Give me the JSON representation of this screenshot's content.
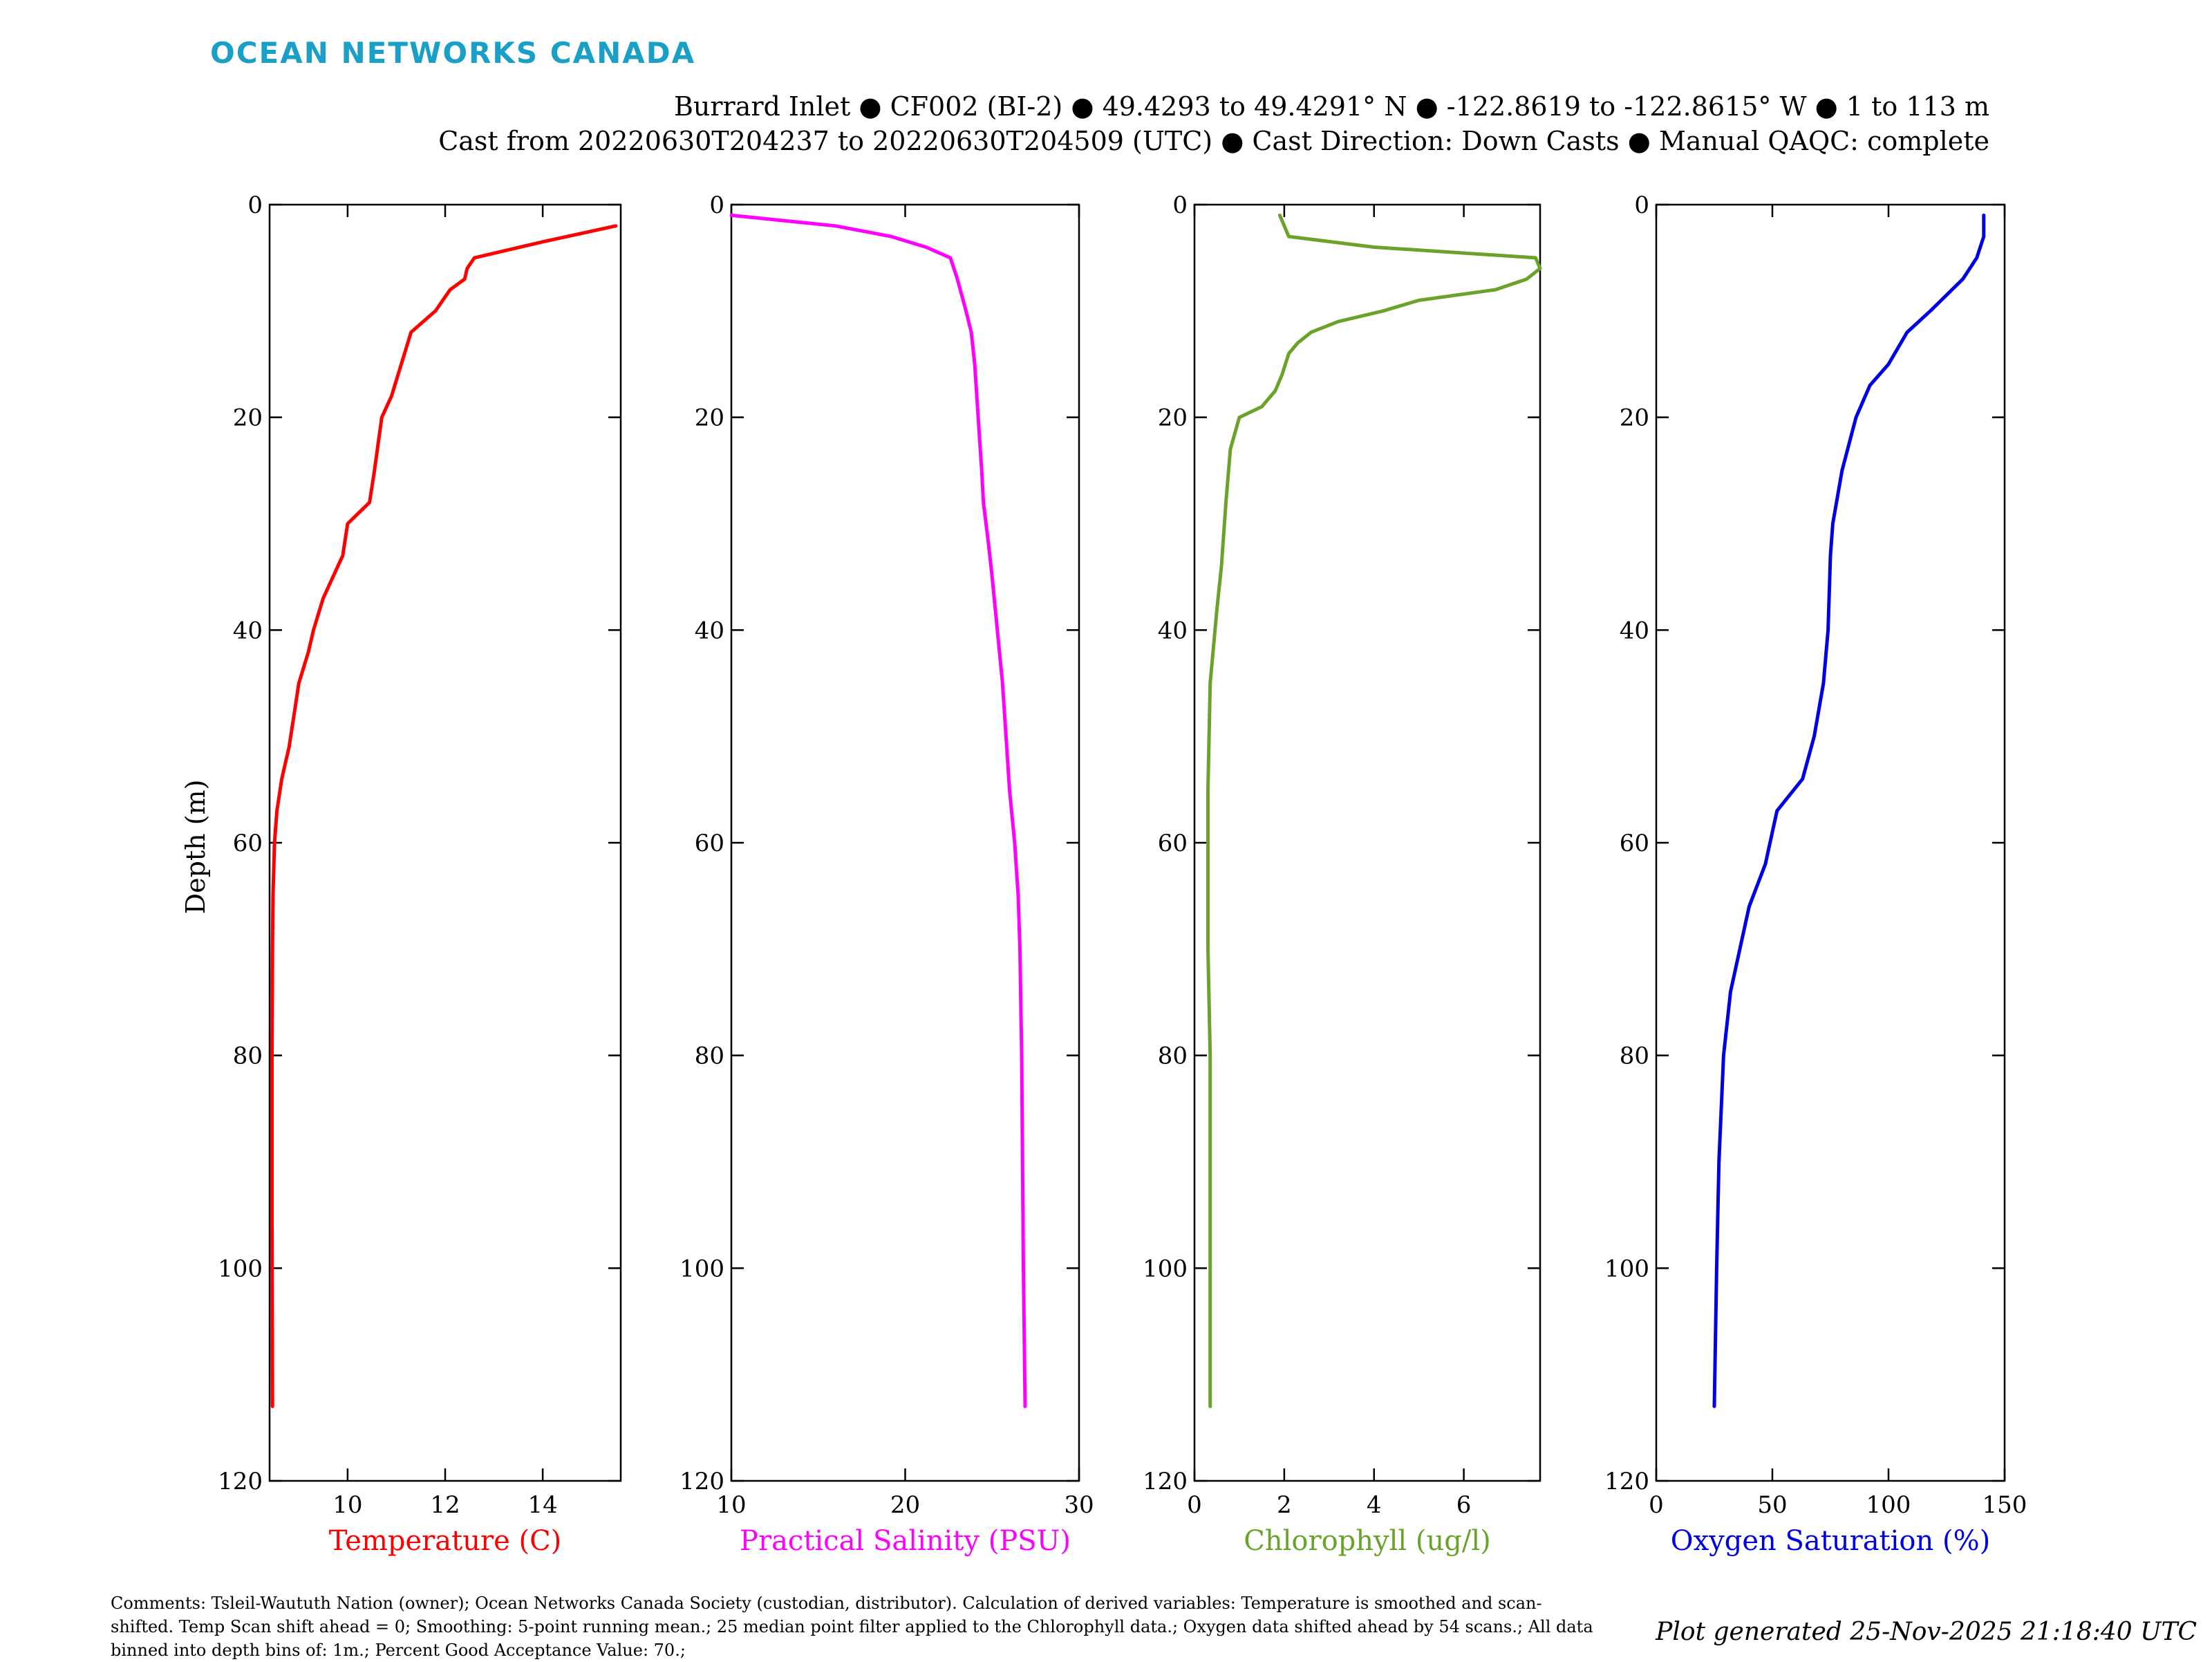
{
  "brand": "OCEAN NETWORKS CANADA",
  "header": {
    "title_line1": "Burrard Inlet ● CF002 (BI-2) ● 49.4293 to 49.4291° N ● -122.8619 to -122.8615° W ● 1 to 113 m",
    "title_line2": "Cast from 20220630T204237 to 20220630T204509 (UTC) ● Cast Direction: Down Casts ● Manual QAQC: complete"
  },
  "footer": {
    "comments": "Comments: Tsleil-Waututh Nation (owner); Ocean Networks Canada Society (custodian, distributor). Calculation of derived variables: Temperature is smoothed and scan-shifted. Temp Scan shift ahead = 0; Smoothing: 5-point running mean.; 25 median point filter applied to the Chlorophyll data.; Oxygen data shifted ahead by 54 scans.; All data binned into depth bins of: 1m.; Percent Good Acceptance Value: 70.;",
    "generated": "Plot generated 25-Nov-2025 21:18:40 UTC"
  },
  "chart_data": [
    {
      "type": "line",
      "xlabel": "Temperature (C)",
      "ylabel": "Depth (m)",
      "color": "#ff0000",
      "xlim": [
        8.4,
        15.6
      ],
      "ylim": [
        0,
        120
      ],
      "y_reversed": true,
      "xticks": [
        10,
        12,
        14
      ],
      "yticks": [
        0,
        20,
        40,
        60,
        80,
        100,
        120
      ],
      "points": [
        [
          15.5,
          2
        ],
        [
          14.0,
          3.5
        ],
        [
          12.6,
          5
        ],
        [
          12.45,
          6
        ],
        [
          12.4,
          7
        ],
        [
          12.1,
          8
        ],
        [
          11.8,
          10
        ],
        [
          11.3,
          12
        ],
        [
          11.1,
          15
        ],
        [
          10.9,
          18
        ],
        [
          10.7,
          20
        ],
        [
          10.55,
          25
        ],
        [
          10.45,
          28
        ],
        [
          10.0,
          30
        ],
        [
          9.9,
          33
        ],
        [
          9.7,
          35
        ],
        [
          9.5,
          37
        ],
        [
          9.3,
          40
        ],
        [
          9.2,
          42
        ],
        [
          9.0,
          45
        ],
        [
          8.9,
          48
        ],
        [
          8.8,
          51
        ],
        [
          8.65,
          54
        ],
        [
          8.55,
          57
        ],
        [
          8.5,
          60
        ],
        [
          8.47,
          65
        ],
        [
          8.46,
          70
        ],
        [
          8.45,
          80
        ],
        [
          8.45,
          95
        ],
        [
          8.46,
          113
        ]
      ]
    },
    {
      "type": "line",
      "xlabel": "Practical Salinity (PSU)",
      "color": "#ff00ff",
      "xlim": [
        10,
        30
      ],
      "ylim": [
        0,
        120
      ],
      "y_reversed": true,
      "xticks": [
        10,
        20,
        30
      ],
      "yticks": [
        0,
        20,
        40,
        60,
        80,
        100,
        120
      ],
      "points": [
        [
          10,
          1
        ],
        [
          13,
          1.5
        ],
        [
          16,
          2
        ],
        [
          19.2,
          3
        ],
        [
          21.2,
          4
        ],
        [
          22.6,
          5
        ],
        [
          23,
          7
        ],
        [
          23.5,
          10
        ],
        [
          23.8,
          12
        ],
        [
          24,
          15
        ],
        [
          24.2,
          20
        ],
        [
          24.4,
          25
        ],
        [
          24.5,
          28
        ],
        [
          24.8,
          32
        ],
        [
          25,
          35
        ],
        [
          25.3,
          40
        ],
        [
          25.6,
          45
        ],
        [
          25.8,
          50
        ],
        [
          26,
          55
        ],
        [
          26.3,
          60
        ],
        [
          26.5,
          65
        ],
        [
          26.6,
          70
        ],
        [
          26.7,
          80
        ],
        [
          26.8,
          100
        ],
        [
          26.9,
          113
        ]
      ]
    },
    {
      "type": "line",
      "xlabel": "Chlorophyll (ug/l)",
      "color": "#6aa22a",
      "xlim": [
        0,
        7.7
      ],
      "ylim": [
        0,
        120
      ],
      "y_reversed": true,
      "xticks": [
        0,
        2,
        4,
        6
      ],
      "yticks": [
        0,
        20,
        40,
        60,
        80,
        100,
        120
      ],
      "points": [
        [
          1.9,
          1
        ],
        [
          2.0,
          2
        ],
        [
          2.1,
          3
        ],
        [
          4.0,
          4
        ],
        [
          7.6,
          5
        ],
        [
          7.7,
          6
        ],
        [
          7.4,
          7
        ],
        [
          6.7,
          8
        ],
        [
          5.0,
          9
        ],
        [
          4.2,
          10
        ],
        [
          3.2,
          11
        ],
        [
          2.6,
          12
        ],
        [
          2.3,
          13
        ],
        [
          2.1,
          14
        ],
        [
          1.95,
          16
        ],
        [
          1.8,
          17.5
        ],
        [
          1.5,
          19
        ],
        [
          1.0,
          20
        ],
        [
          0.8,
          23
        ],
        [
          0.7,
          28
        ],
        [
          0.6,
          34
        ],
        [
          0.5,
          38
        ],
        [
          0.35,
          45
        ],
        [
          0.3,
          55
        ],
        [
          0.3,
          60
        ],
        [
          0.3,
          70
        ],
        [
          0.35,
          80
        ],
        [
          0.35,
          100
        ],
        [
          0.35,
          113
        ]
      ]
    },
    {
      "type": "line",
      "xlabel": "Oxygen Saturation (%)",
      "color": "#0000e6",
      "xlim": [
        0,
        150
      ],
      "ylim": [
        0,
        120
      ],
      "y_reversed": true,
      "xticks": [
        0,
        50,
        100,
        150
      ],
      "yticks": [
        0,
        20,
        40,
        60,
        80,
        100,
        120
      ],
      "points": [
        [
          141,
          1
        ],
        [
          141,
          3
        ],
        [
          138,
          5
        ],
        [
          132,
          7
        ],
        [
          118,
          10
        ],
        [
          108,
          12
        ],
        [
          100,
          15
        ],
        [
          92,
          17
        ],
        [
          86,
          20
        ],
        [
          80,
          25
        ],
        [
          76,
          30
        ],
        [
          75,
          33
        ],
        [
          74,
          40
        ],
        [
          72,
          45
        ],
        [
          68,
          50
        ],
        [
          63,
          54
        ],
        [
          52,
          57
        ],
        [
          47,
          62
        ],
        [
          40,
          66
        ],
        [
          32,
          74
        ],
        [
          29,
          80
        ],
        [
          27,
          90
        ],
        [
          26,
          100
        ],
        [
          25,
          113
        ]
      ]
    }
  ]
}
